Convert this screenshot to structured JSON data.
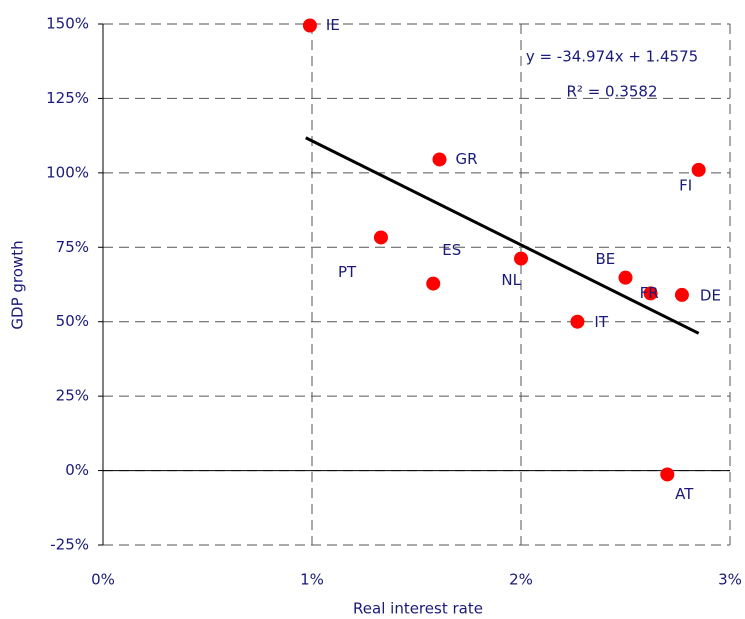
{
  "chart_data": {
    "type": "scatter",
    "x_label": "Real interest rate",
    "y_label": "GDP growth",
    "labels": [
      "IE",
      "GR",
      "FI",
      "PT",
      "ES",
      "NL",
      "BE",
      "FR",
      "DE",
      "IT",
      "AT"
    ],
    "x": [
      0.99,
      1.61,
      2.85,
      1.33,
      1.58,
      2.0,
      2.5,
      2.62,
      2.77,
      2.27,
      2.7
    ],
    "values": [
      149.5,
      104.5,
      101,
      78.3,
      62.8,
      71.2,
      64.8,
      59.5,
      59,
      50,
      -1.3
    ],
    "color": "#ff0000",
    "xlim": [
      0,
      3
    ],
    "xticks": [
      {
        "value": 0,
        "label": "0%"
      },
      {
        "value": 1,
        "label": "1%"
      },
      {
        "value": 2,
        "label": "2%"
      },
      {
        "value": 3,
        "label": "3%"
      }
    ],
    "ylim": [
      -25,
      150
    ],
    "yticks": [
      {
        "value": -25,
        "label": "-25%"
      },
      {
        "value": 0,
        "label": "0%"
      },
      {
        "value": 25,
        "label": "25%"
      },
      {
        "value": 50,
        "label": "50%"
      },
      {
        "value": 75,
        "label": "75%"
      },
      {
        "value": 100,
        "label": "100%"
      },
      {
        "value": 125,
        "label": "125%"
      },
      {
        "value": 150,
        "label": "150%"
      }
    ],
    "grid": true,
    "trendline": {
      "x": [
        0.97,
        2.85
      ],
      "y": [
        111.8,
        46.1
      ],
      "color": "#000000",
      "equation": "y = -34.974x + 1.4575",
      "r_squared": "R² = 0.3582"
    }
  }
}
